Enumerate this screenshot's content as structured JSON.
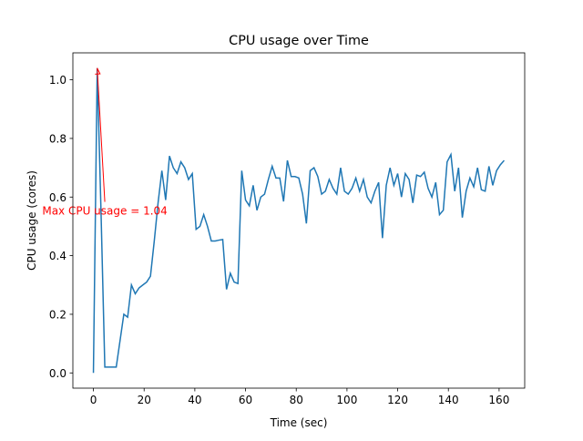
{
  "chart_data": {
    "type": "line",
    "title": "CPU usage over Time",
    "x_label": "Time (sec)",
    "y_label": "CPU usage (cores)",
    "x": [
      0,
      1.5,
      3,
      4.5,
      6,
      7.5,
      9,
      10.5,
      12,
      13.5,
      15,
      16.5,
      18,
      19.5,
      21,
      22.5,
      24,
      25.5,
      27,
      28.5,
      30,
      31.5,
      33,
      34.5,
      36,
      37.5,
      39,
      40.5,
      42,
      43.5,
      45,
      46.5,
      48,
      49.5,
      51,
      52.5,
      54,
      55.5,
      57,
      58.5,
      60,
      61.5,
      63,
      64.5,
      66,
      67.5,
      69,
      70.5,
      72,
      73.5,
      75,
      76.5,
      78,
      79.5,
      81,
      82.5,
      84,
      85.5,
      87,
      88.5,
      90,
      91.5,
      93,
      94.5,
      96,
      97.5,
      99,
      100.5,
      102,
      103.5,
      105,
      106.5,
      108,
      109.5,
      111,
      112.5,
      114,
      115.5,
      117,
      118.5,
      120,
      121.5,
      123,
      124.5,
      126,
      127.5,
      129,
      130.5,
      132,
      133.5,
      135,
      136.5,
      138,
      139.5,
      141,
      142.5,
      144,
      145.5,
      147,
      148.5,
      150,
      151.5,
      153,
      154.5,
      156,
      157.5,
      159,
      160.5,
      162
    ],
    "series": [
      {
        "name": "CPU usage",
        "color": "#1f77b4",
        "values": [
          0.0,
          1.04,
          0.55,
          0.02,
          0.02,
          0.02,
          0.02,
          0.11,
          0.2,
          0.19,
          0.3,
          0.27,
          0.29,
          0.3,
          0.31,
          0.33,
          0.45,
          0.58,
          0.69,
          0.59,
          0.74,
          0.7,
          0.68,
          0.72,
          0.7,
          0.66,
          0.68,
          0.49,
          0.5,
          0.54,
          0.5,
          0.45,
          0.45,
          0.453,
          0.455,
          0.285,
          0.34,
          0.31,
          0.305,
          0.69,
          0.59,
          0.57,
          0.64,
          0.555,
          0.6,
          0.61,
          0.66,
          0.705,
          0.665,
          0.665,
          0.585,
          0.725,
          0.67,
          0.67,
          0.665,
          0.61,
          0.51,
          0.69,
          0.7,
          0.67,
          0.61,
          0.62,
          0.66,
          0.63,
          0.61,
          0.7,
          0.62,
          0.61,
          0.63,
          0.665,
          0.62,
          0.66,
          0.6,
          0.58,
          0.62,
          0.65,
          0.46,
          0.64,
          0.7,
          0.64,
          0.68,
          0.6,
          0.68,
          0.66,
          0.58,
          0.675,
          0.67,
          0.685,
          0.63,
          0.6,
          0.65,
          0.54,
          0.555,
          0.72,
          0.745,
          0.62,
          0.7,
          0.53,
          0.62,
          0.665,
          0.635,
          0.7,
          0.625,
          0.62,
          0.705,
          0.64,
          0.69,
          0.71,
          0.725
        ]
      }
    ],
    "xlim": [
      -8.1,
      170.1
    ],
    "xticks": [
      0,
      20,
      40,
      60,
      80,
      100,
      120,
      140,
      160
    ],
    "ylim": [
      -0.052,
      1.092
    ],
    "yticks": [
      {
        "value": 0,
        "label": "0.0"
      },
      0.2,
      0.4,
      0.6,
      0.8,
      {
        "value": 1,
        "label": "1.0"
      }
    ],
    "annotation": {
      "text": "Max CPU usage = 1.04",
      "x": 1.5,
      "y": 1.04,
      "text_x": 4.5,
      "text_y": 0.54,
      "color": "red"
    }
  }
}
